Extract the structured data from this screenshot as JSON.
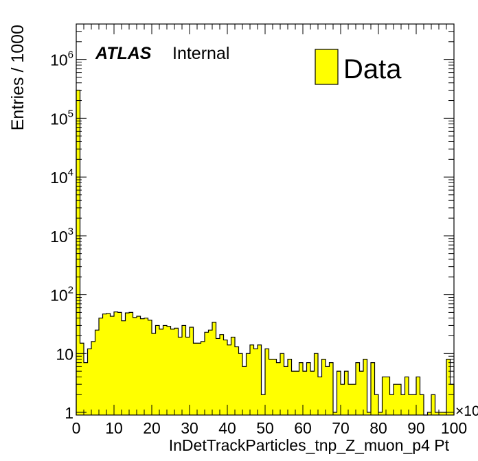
{
  "chart_data": {
    "type": "bar",
    "style": "histogram",
    "fill_color": "#ffff00",
    "edge_color": "#000000",
    "xlabel": "InDetTrackParticles_tnp_Z_muon_p4 Pt",
    "ylabel": "Entries / 1000",
    "x_multiplier_label": "×10",
    "xlim": [
      0,
      100
    ],
    "ylim": [
      0.9,
      4000000
    ],
    "yscale": "log",
    "x_ticks": [
      "0",
      "10",
      "20",
      "30",
      "40",
      "50",
      "60",
      "70",
      "80",
      "90",
      "100"
    ],
    "y_ticks": [
      {
        "value": 1,
        "base": "1",
        "exp": ""
      },
      {
        "value": 10,
        "base": "10",
        "exp": ""
      },
      {
        "value": 100,
        "base": "10",
        "exp": "2"
      },
      {
        "value": 1000,
        "base": "10",
        "exp": "3"
      },
      {
        "value": 10000,
        "base": "10",
        "exp": "4"
      },
      {
        "value": 100000,
        "base": "10",
        "exp": "5"
      },
      {
        "value": 1000000,
        "base": "10",
        "exp": "6"
      }
    ],
    "legend": {
      "entries": [
        "Data"
      ],
      "position": "top-right"
    },
    "annotation": {
      "atlas": "ATLAS",
      "status": "Internal"
    },
    "bin_width": 1,
    "values": [
      300000,
      15,
      7,
      12,
      16,
      25,
      40,
      47,
      48,
      43,
      51,
      50,
      36,
      49,
      50,
      41,
      43,
      39,
      40,
      37,
      22,
      30,
      26,
      30,
      29,
      26,
      27,
      19,
      30,
      19,
      28,
      15,
      15,
      16,
      23,
      25,
      34,
      18,
      21,
      17,
      14,
      19,
      13,
      10,
      6,
      10,
      14,
      12,
      14,
      2,
      12,
      8,
      8,
      7,
      10,
      6,
      8,
      5,
      5,
      7,
      5,
      7,
      5,
      10,
      4,
      8,
      6,
      7,
      1,
      5,
      3,
      5,
      3,
      3,
      7,
      5,
      8,
      1,
      7,
      2,
      1,
      4,
      4,
      2,
      3,
      3,
      2,
      4,
      2,
      2,
      4,
      2,
      0,
      1,
      2,
      1,
      1,
      1,
      8,
      3
    ]
  }
}
